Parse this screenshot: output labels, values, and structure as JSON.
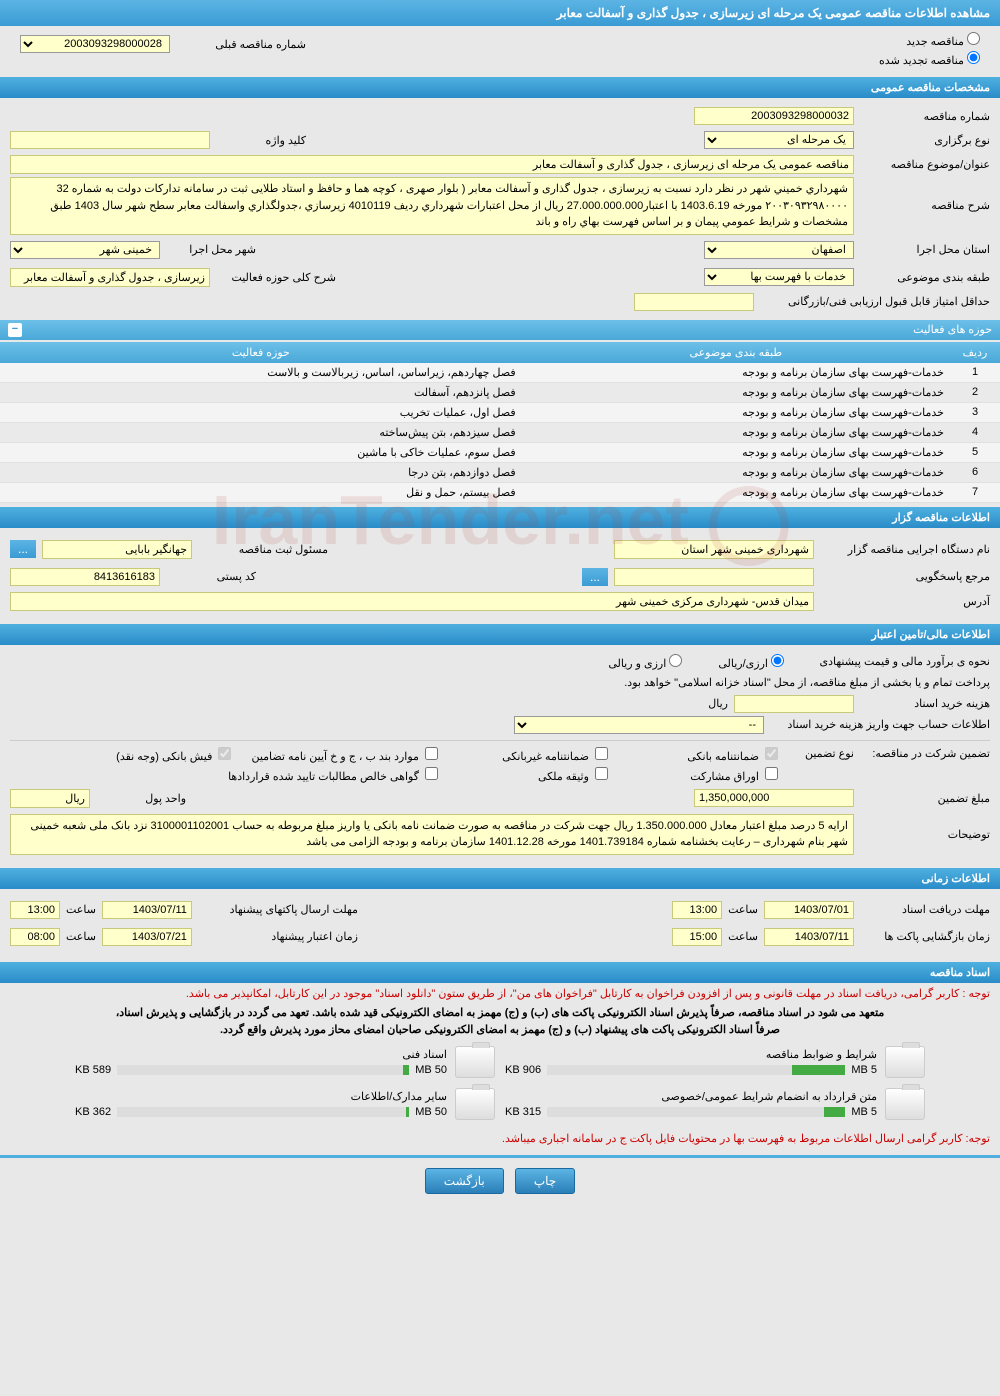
{
  "page_title": "مشاهده اطلاعات مناقصه عمومی یک مرحله ای زیرسازی ، جدول گذاری و آسفالت معابر",
  "top": {
    "radio_new": "مناقصه جدید",
    "radio_renewed": "مناقصه تجدید شده",
    "prev_label": "شماره مناقصه قبلی",
    "prev_value": "2003093298000028"
  },
  "sections": {
    "general": "مشخصات مناقصه عمومی",
    "activity": "حوزه های فعالیت",
    "buyer": "اطلاعات مناقصه گزار",
    "financial": "اطلاعات مالی/تامین اعتبار",
    "timing": "اطلاعات زمانی",
    "docs": "اسناد مناقصه"
  },
  "general": {
    "number_label": "شماره مناقصه",
    "number": "2003093298000032",
    "type_label": "نوع برگزاری",
    "type": "یک مرحله ای",
    "keyword_label": "کلید واژه",
    "keyword": "",
    "subject_label": "عنوان/موضوع مناقصه",
    "subject": "مناقصه عمومی یک مرحله ای زیرسازی ، جدول گذاری و آسفالت معابر",
    "desc_label": "شرح مناقصه",
    "desc": "شهرداري خميني شهر در نظر دارد نسبت به زیرسازی ، جدول گذاری و آسفالت معابر ( بلوار صهری ، کوچه هما و حافظ و استاد طلایی ثبت در سامانه تدارکات دولت به شماره 32 ۲۰۰۳۰۹۳۲۹۸۰۰۰۰ مورخه 1403.6.19 با اعتبار27.000.000.000 ریال از محل اعتبارات شهرداري رديف 4010119 زيرسازي ،جدولگذاري واسفالت معابر سطح شهر سال 1403 طبق مشخصات و شرايط عمومي پيمان و بر اساس فهرست بهاي راه و باند",
    "province_label": "استان محل اجرا",
    "province": "اصفهان",
    "city_label": "شهر محل اجرا",
    "city": "خمینی شهر",
    "category_label": "طبقه بندی موضوعی",
    "category": "خدمات با فهرست بها",
    "summary_label": "شرح کلی حوزه فعالیت",
    "summary": "زیرسازی ، جدول گذاری و آسفالت معابر",
    "min_score_label": "حداقل امتیاز قابل قبول ارزیابی فنی/بازرگانی",
    "min_score": ""
  },
  "activity_table": {
    "cols": [
      "ردیف",
      "طبقه بندی موضوعی",
      "حوزه فعالیت"
    ],
    "rows": [
      [
        "1",
        "خدمات-فهرست بهای سازمان برنامه و بودجه",
        "فصل چهاردهم، زیراساس، اساس، زیربالاست و بالاست"
      ],
      [
        "2",
        "خدمات-فهرست بهای سازمان برنامه و بودجه",
        "فصل پانزدهم، آسفالت"
      ],
      [
        "3",
        "خدمات-فهرست بهای سازمان برنامه و بودجه",
        "فصل اول، عملیات تخریب"
      ],
      [
        "4",
        "خدمات-فهرست بهای سازمان برنامه و بودجه",
        "فصل سیزدهم، بتن پیش‌ساخته"
      ],
      [
        "5",
        "خدمات-فهرست بهای سازمان برنامه و بودجه",
        "فصل سوم، عملیات خاکی با ماشین"
      ],
      [
        "6",
        "خدمات-فهرست بهای سازمان برنامه و بودجه",
        "فصل دوازدهم، بتن درجا"
      ],
      [
        "7",
        "خدمات-فهرست بهای سازمان برنامه و بودجه",
        "فصل بیستم، حمل و نقل"
      ]
    ]
  },
  "buyer": {
    "org_label": "نام دستگاه اجرایی مناقصه گزار",
    "org": "شهرداری خمینی شهر استان",
    "reg_label": "مسئول ثبت مناقصه",
    "reg": "جهانگیر بابایی",
    "resp_label": "مرجع پاسخگویی",
    "resp_btn": "...",
    "postal_label": "کد پستی",
    "postal": "8413616183",
    "address_label": "آدرس",
    "address": "میدان قدس- شهرداری مرکزی خمینی شهر"
  },
  "financial": {
    "estimate_label": "نحوه ی برآورد مالی و قیمت پیشنهادی",
    "opt_currency": "ارزی/ریالی",
    "opt_rial": "ارزی و ریالی",
    "payment_note": "پرداخت تمام و یا بخشی از مبلغ مناقصه، از محل \"اسناد خزانه اسلامی\" خواهد بود.",
    "fee_label": "هزینه خرید اسناد",
    "fee_unit": "ریال",
    "fee": "",
    "account_label": "اطلاعات حساب جهت واریز هزینه خرید اسناد",
    "account": "--",
    "guarantee_label": "تضمین شرکت در مناقصه:",
    "guarantee_type": "نوع تضمین",
    "chk_bank": "ضمانتنامه بانکی",
    "chk_nonbank": "ضمانتنامه غیربانکی",
    "chk_items": "موارد بند ب ، ج و خ آیین نامه تضامین",
    "chk_cash": "فیش بانکی (وجه نقد)",
    "chk_bonds": "اوراق مشارکت",
    "chk_deed": "وثیقه ملکی",
    "chk_cert": "گواهی خالص مطالبات تایید شده قراردادها",
    "amount_label": "مبلغ تضمین",
    "amount": "1,350,000,000",
    "unit_label": "واحد پول",
    "unit": "ریال",
    "notes_label": "توضیحات",
    "notes": "ارایه 5 درصد مبلغ اعتبار معادل 1.350.000.000 ریال جهت شرکت در مناقصه به صورت ضمانت نامه بانکی یا واریز مبلغ مربوطه به حساب 3100001102001 نزد بانک ملی شعبه خمینی شهر بنام شهرداری – رعایت بخشنامه شماره 1401.739184 مورخه 1401.12.28 سازمان  برنامه و بودجه الزامی می باشد"
  },
  "timing": {
    "receive_label": "مهلت دریافت اسناد",
    "receive_date": "1403/07/01",
    "receive_time": "13:00",
    "open_label": "زمان بازگشایی پاکت ها",
    "open_date": "1403/07/11",
    "open_time": "15:00",
    "submit_label": "مهلت ارسال پاکتهای پیشنهاد",
    "submit_date": "1403/07/11",
    "submit_time": "13:00",
    "validity_label": "زمان اعتبار پیشنهاد",
    "validity_date": "1403/07/21",
    "validity_time": "08:00",
    "time_word": "ساعت"
  },
  "docs": {
    "note1": "توجه : کاربر گرامی، دریافت اسناد در مهلت قانونی و پس از افزودن فراخوان به کارتابل \"فراخوان های من\"، از طریق ستون \"دانلود اسناد\" موجود در این کارتابل، امکانپذیر می باشد.",
    "note2a": "متعهد می شود در اسناد مناقصه، صرفاً پذیرش اسناد الکترونیکی پاکت های (ب) و (ج) مهمز به امضای الکترونیکی قید شده باشد. تعهد می گردد در بازگشایی و پذیرش اسناد،",
    "note2b": "صرفاً اسناد الکترونیکی پاکت های پیشنهاد (ب) و (ج) مهمز به امضای الکترونیکی صاحبان امضای محاز مورد پذیرش واقع گردد.",
    "items": [
      {
        "title": "شرایط و ضوابط مناقصه",
        "size": "906 KB",
        "max": "5 MB",
        "pct": 18
      },
      {
        "title": "اسناد فنی",
        "size": "589 KB",
        "max": "50 MB",
        "pct": 2
      },
      {
        "title": "متن قرارداد به انضمام شرایط عمومی/خصوصی",
        "size": "315 KB",
        "max": "5 MB",
        "pct": 7
      },
      {
        "title": "سایر مدارک/اطلاعات",
        "size": "362 KB",
        "max": "50 MB",
        "pct": 1
      }
    ],
    "note3": "توجه: کاربر گرامی ارسال اطلاعات مربوط به فهرست بها در محتویات فایل پاکت ج در سامانه اجباری میباشد."
  },
  "buttons": {
    "print": "چاپ",
    "back": "بازگشت"
  },
  "colors": {
    "header_bg": "#3a9bd4",
    "field_bg": "#ffffcc",
    "page_bg": "#e8e8e8"
  }
}
